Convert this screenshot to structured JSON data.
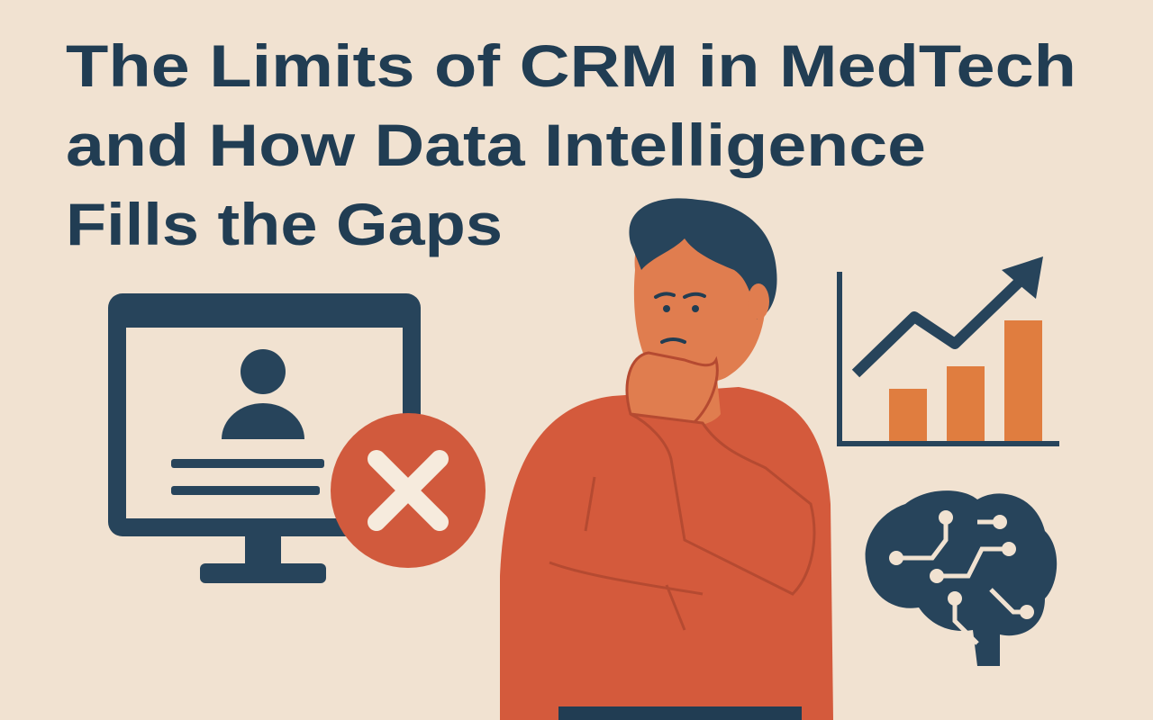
{
  "header": {
    "title": {
      "lines": [
        "The Limits of CRM in MedTech",
        "and How Data Intelligence",
        "Fills the Gaps"
      ]
    }
  }
}
